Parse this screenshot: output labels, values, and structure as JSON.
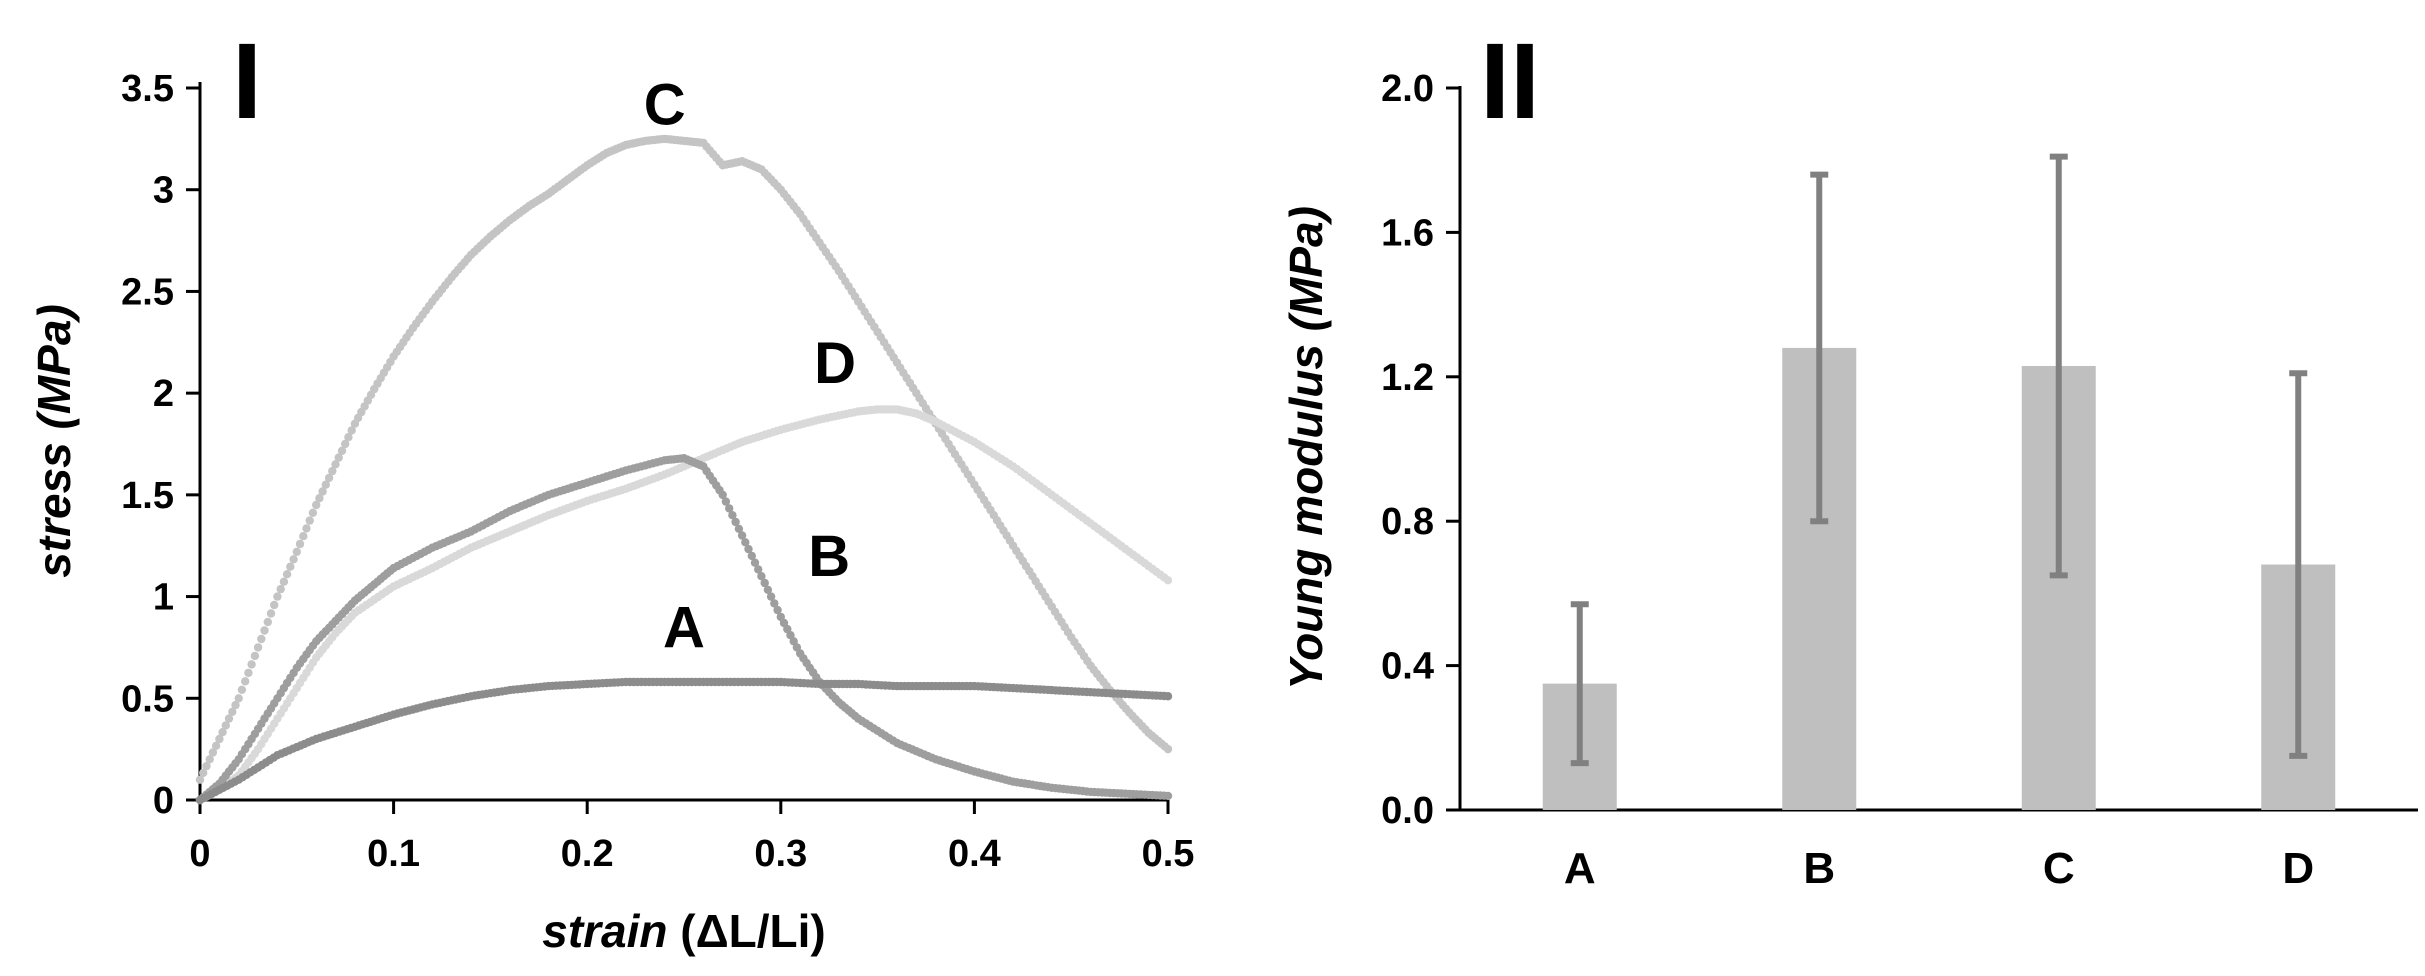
{
  "chart_data": [
    {
      "type": "scatter",
      "panel_label": "I",
      "title": "",
      "xlabel_italic": "strain",
      "xlabel_rest": " (ΔL/Li)",
      "ylabel": "stress (MPa)",
      "xlim": [
        0,
        0.5
      ],
      "ylim": [
        0,
        3.5
      ],
      "xticks": [
        "0",
        "0.1",
        "0.2",
        "0.3",
        "0.4",
        "0.5"
      ],
      "xtick_values": [
        0,
        0.1,
        0.2,
        0.3,
        0.4,
        0.5
      ],
      "yticks": [
        "0",
        "0.5",
        "1",
        "1.5",
        "2",
        "2.5",
        "3",
        "3.5"
      ],
      "ytick_values": [
        0,
        0.5,
        1,
        1.5,
        2,
        2.5,
        3,
        3.5
      ],
      "grid": false,
      "series": [
        {
          "name": "A",
          "color": "#8c8c8c",
          "label_at": [
            0.25,
            0.75
          ],
          "x": [
            0,
            0.02,
            0.04,
            0.06,
            0.08,
            0.1,
            0.12,
            0.14,
            0.16,
            0.18,
            0.2,
            0.22,
            0.24,
            0.26,
            0.28,
            0.3,
            0.32,
            0.34,
            0.36,
            0.38,
            0.4,
            0.42,
            0.44,
            0.46,
            0.48,
            0.5
          ],
          "y": [
            0.0,
            0.1,
            0.22,
            0.3,
            0.36,
            0.42,
            0.47,
            0.51,
            0.54,
            0.56,
            0.57,
            0.58,
            0.58,
            0.58,
            0.58,
            0.58,
            0.57,
            0.57,
            0.56,
            0.56,
            0.56,
            0.55,
            0.54,
            0.53,
            0.52,
            0.51
          ]
        },
        {
          "name": "B",
          "color": "#9e9e9e",
          "label_at": [
            0.325,
            1.1
          ],
          "x": [
            0,
            0.01,
            0.02,
            0.03,
            0.04,
            0.05,
            0.06,
            0.07,
            0.08,
            0.09,
            0.1,
            0.12,
            0.14,
            0.16,
            0.18,
            0.2,
            0.22,
            0.24,
            0.25,
            0.26,
            0.27,
            0.28,
            0.29,
            0.3,
            0.31,
            0.32,
            0.33,
            0.34,
            0.36,
            0.38,
            0.4,
            0.42,
            0.44,
            0.46,
            0.48,
            0.5
          ],
          "y": [
            0.0,
            0.08,
            0.2,
            0.35,
            0.5,
            0.65,
            0.78,
            0.88,
            0.98,
            1.06,
            1.14,
            1.24,
            1.32,
            1.42,
            1.5,
            1.56,
            1.62,
            1.67,
            1.68,
            1.64,
            1.5,
            1.3,
            1.1,
            0.9,
            0.72,
            0.58,
            0.48,
            0.4,
            0.28,
            0.2,
            0.14,
            0.09,
            0.06,
            0.04,
            0.03,
            0.02
          ]
        },
        {
          "name": "C",
          "color": "#c4c4c4",
          "label_at": [
            0.24,
            3.32
          ],
          "x": [
            0,
            0.01,
            0.02,
            0.03,
            0.04,
            0.05,
            0.06,
            0.07,
            0.08,
            0.09,
            0.1,
            0.11,
            0.12,
            0.13,
            0.14,
            0.15,
            0.16,
            0.17,
            0.18,
            0.19,
            0.2,
            0.21,
            0.22,
            0.23,
            0.24,
            0.25,
            0.26,
            0.27,
            0.28,
            0.29,
            0.3,
            0.31,
            0.32,
            0.33,
            0.34,
            0.35,
            0.36,
            0.37,
            0.38,
            0.39,
            0.4,
            0.41,
            0.42,
            0.43,
            0.44,
            0.45,
            0.46,
            0.47,
            0.48,
            0.49,
            0.5
          ],
          "y": [
            0.1,
            0.3,
            0.5,
            0.75,
            1.0,
            1.22,
            1.45,
            1.65,
            1.85,
            2.02,
            2.18,
            2.32,
            2.45,
            2.57,
            2.68,
            2.77,
            2.85,
            2.92,
            2.98,
            3.05,
            3.12,
            3.18,
            3.22,
            3.24,
            3.25,
            3.24,
            3.23,
            3.12,
            3.14,
            3.1,
            3.0,
            2.88,
            2.74,
            2.6,
            2.45,
            2.3,
            2.15,
            2.0,
            1.85,
            1.7,
            1.55,
            1.4,
            1.25,
            1.1,
            0.95,
            0.8,
            0.66,
            0.54,
            0.43,
            0.33,
            0.25
          ]
        },
        {
          "name": "D",
          "color": "#d9d9d9",
          "label_at": [
            0.328,
            2.05
          ],
          "x": [
            0,
            0.01,
            0.02,
            0.03,
            0.04,
            0.05,
            0.06,
            0.07,
            0.08,
            0.1,
            0.12,
            0.14,
            0.16,
            0.18,
            0.2,
            0.22,
            0.24,
            0.26,
            0.28,
            0.3,
            0.32,
            0.34,
            0.35,
            0.36,
            0.37,
            0.38,
            0.4,
            0.42,
            0.44,
            0.46,
            0.48,
            0.5
          ],
          "y": [
            0.0,
            0.05,
            0.12,
            0.25,
            0.4,
            0.55,
            0.7,
            0.82,
            0.92,
            1.05,
            1.14,
            1.24,
            1.32,
            1.4,
            1.47,
            1.53,
            1.6,
            1.68,
            1.76,
            1.82,
            1.87,
            1.91,
            1.92,
            1.92,
            1.9,
            1.86,
            1.76,
            1.64,
            1.5,
            1.36,
            1.22,
            1.08
          ]
        }
      ]
    },
    {
      "type": "bar",
      "panel_label": "II",
      "title": "",
      "xlabel": "",
      "ylabel": "Young modulus (MPa)",
      "categories": [
        "A",
        "B",
        "C",
        "D"
      ],
      "values": [
        0.35,
        1.28,
        1.23,
        0.68
      ],
      "error": [
        0.22,
        0.48,
        0.58,
        0.53
      ],
      "ylim": [
        0,
        2.0
      ],
      "yticks": [
        "0.0",
        "0.4",
        "0.8",
        "1.2",
        "1.6",
        "2.0"
      ],
      "ytick_values": [
        0,
        0.4,
        0.8,
        1.2,
        1.6,
        2.0
      ],
      "bar_color": "#bfbfbf",
      "error_color": "#808080",
      "grid": false
    }
  ]
}
